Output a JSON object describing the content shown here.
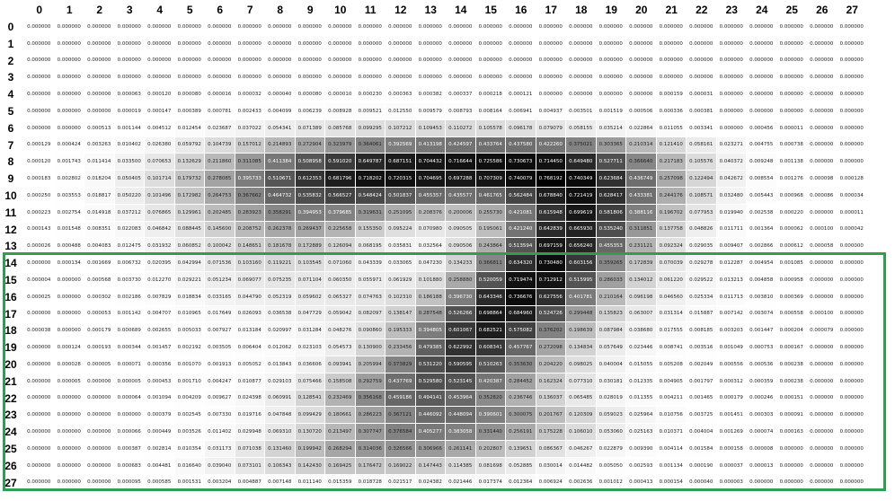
{
  "columns": [
    "0",
    "1",
    "2",
    "3",
    "4",
    "5",
    "6",
    "7",
    "8",
    "9",
    "10",
    "11",
    "12",
    "13",
    "14",
    "15",
    "16",
    "17",
    "18",
    "19",
    "20",
    "21",
    "22",
    "23",
    "24",
    "25",
    "26",
    "27"
  ],
  "rows": [
    "0",
    "1",
    "2",
    "3",
    "4",
    "5",
    "6",
    "7",
    "8",
    "9",
    "10",
    "11",
    "12",
    "13",
    "14",
    "15",
    "16",
    "17",
    "18",
    "19",
    "20",
    "21",
    "22",
    "23",
    "24",
    "25",
    "26",
    "27"
  ],
  "highlight_color": "#2f9e4e",
  "matrix": [
    [
      0,
      0,
      0,
      0,
      0,
      0,
      0,
      0,
      0,
      0,
      0,
      0,
      0,
      0,
      0,
      0,
      0,
      0,
      0,
      0,
      0,
      0,
      0,
      0,
      0,
      0,
      0,
      0
    ],
    [
      0,
      0,
      0,
      0,
      0,
      0,
      0,
      0,
      0,
      0,
      0,
      0,
      0,
      0,
      0,
      0,
      0,
      0,
      0,
      0,
      0,
      0,
      0,
      0,
      0,
      0,
      0,
      0
    ],
    [
      0,
      0,
      0,
      0,
      0,
      0,
      0,
      0,
      0,
      0,
      0,
      0,
      0,
      0,
      0,
      0,
      0,
      0,
      0,
      0,
      0,
      0,
      0,
      0,
      0,
      0,
      0,
      0
    ],
    [
      0,
      0,
      0,
      0,
      0,
      0,
      0,
      0,
      0,
      0,
      0,
      0,
      0,
      0,
      0,
      0,
      0,
      0,
      0,
      0,
      0,
      0,
      0,
      0,
      0,
      0,
      0,
      0
    ],
    [
      0,
      0,
      0,
      6.3e-05,
      0.00012,
      8e-05,
      1.6e-05,
      3.2e-05,
      4e-05,
      8e-05,
      1e-05,
      0.00023,
      0.000363,
      0.000382,
      0.000337,
      0.000218,
      0.000121,
      0,
      0,
      0,
      0,
      0.000159,
      3.1e-05,
      0,
      0,
      0,
      0,
      0
    ],
    [
      0,
      0,
      0,
      1.9e-05,
      0.000147,
      0.000389,
      0.000781,
      0.002433,
      0.004099,
      0.006239,
      0.008928,
      0.009521,
      0.01255,
      0.009579,
      0.008793,
      0.008164,
      0.006941,
      0.004937,
      0.003501,
      0.001519,
      0.000506,
      0.000336,
      0.000381,
      0,
      0,
      0,
      0,
      0
    ],
    [
      0,
      0,
      0.000513,
      0.001144,
      0.004512,
      0.012454,
      0.023687,
      0.037022,
      0.054341,
      0.071389,
      0.085768,
      0.099295,
      0.107212,
      0.109453,
      0.110272,
      0.105578,
      0.096178,
      0.079079,
      0.058155,
      0.035214,
      0.022864,
      0.011055,
      0.003341,
      0,
      0.000456,
      1.1e-05,
      0,
      0
    ],
    [
      0.000129,
      0.000424,
      0.003263,
      0.010402,
      0.02638,
      0.059792,
      0.104739,
      0.157012,
      0.214893,
      0.272904,
      0.323979,
      0.364061,
      0.392569,
      0.413198,
      0.424597,
      0.433764,
      0.43758,
      0.42226,
      0.375021,
      0.303365,
      0.210314,
      0.12141,
      0.058161,
      0.023271,
      0.004755,
      0.000738,
      0,
      0
    ],
    [
      0.00012,
      0.001743,
      0.011414,
      0.0335,
      0.070653,
      0.132629,
      0.21186,
      0.311085,
      0.411384,
      0.508958,
      0.59102,
      0.649787,
      0.687151,
      0.704432,
      0.716644,
      0.725586,
      0.730673,
      0.71445,
      0.64948,
      0.527711,
      0.36664,
      0.217183,
      0.105576,
      0.040372,
      0.009248,
      0.001138,
      0,
      0
    ],
    [
      0.000183,
      0.002802,
      0.018204,
      0.050405,
      0.101714,
      0.179732,
      0.278085,
      0.395733,
      0.510671,
      0.612353,
      0.681796,
      0.718202,
      0.720315,
      0.704695,
      0.697288,
      0.707309,
      0.740079,
      0.768192,
      0.740349,
      0.623684,
      0.436749,
      0.257098,
      0.122494,
      0.042672,
      0.008554,
      0.001276,
      9.8e-05,
      0.000128
    ],
    [
      0.00025,
      0.003553,
      0.018817,
      0.05022,
      0.101496,
      0.172982,
      0.264753,
      0.367662,
      0.464732,
      0.535832,
      0.566527,
      0.548424,
      0.501837,
      0.455357,
      0.435577,
      0.461765,
      0.562484,
      0.67884,
      0.721419,
      0.628417,
      0.433381,
      0.244176,
      0.108571,
      0.03248,
      0.005443,
      0.000968,
      8.6e-05,
      3.4e-05
    ],
    [
      0.000223,
      0.002754,
      0.014918,
      0.037212,
      0.076865,
      0.129961,
      0.202485,
      0.283923,
      0.358291,
      0.394953,
      0.379685,
      0.319631,
      0.251095,
      0.208376,
      0.200006,
      0.25573,
      0.421081,
      0.615948,
      0.699619,
      0.581806,
      0.388116,
      0.196702,
      0.077953,
      0.01994,
      0.002538,
      0.00022,
      0,
      1.1e-05
    ],
    [
      0.000143,
      0.001548,
      0.008351,
      0.022083,
      0.046842,
      0.088445,
      0.1456,
      0.208752,
      0.262378,
      0.269437,
      0.225658,
      0.15535,
      0.095224,
      0.07098,
      0.090505,
      0.195061,
      0.42124,
      0.642839,
      0.66593,
      0.53524,
      0.311851,
      0.137758,
      0.048826,
      0.011711,
      0.001364,
      6.2e-05,
      0.0001,
      4.2e-05
    ],
    [
      2.6e-05,
      0.000488,
      0.004083,
      0.012475,
      0.031932,
      0.060852,
      0.100042,
      0.148651,
      0.181678,
      0.172889,
      0.126094,
      0.068195,
      0.035831,
      0.032564,
      0.090506,
      0.243864,
      0.513594,
      0.697159,
      0.65624,
      0.455353,
      0.231121,
      0.092324,
      0.029035,
      0.009407,
      0.002866,
      0.000612,
      5.8e-05,
      0
    ],
    [
      0,
      0.000134,
      0.001669,
      0.006732,
      0.020395,
      0.042994,
      0.071536,
      0.10316,
      0.119221,
      0.103545,
      0.07106,
      0.043339,
      0.033065,
      0.04723,
      0.134233,
      0.366811,
      0.63432,
      0.73048,
      0.603156,
      0.359265,
      0.172839,
      0.070039,
      0.029278,
      0.012287,
      0.004954,
      0.001085,
      0,
      0
    ],
    [
      4e-06,
      0,
      0.000568,
      0.00373,
      0.01227,
      0.029221,
      0.051234,
      0.069077,
      0.075235,
      0.071104,
      0.06035,
      0.055971,
      0.061929,
      0.10188,
      0.25888,
      0.520059,
      0.719474,
      0.712912,
      0.515995,
      0.286033,
      0.134012,
      0.06122,
      0.029522,
      0.013213,
      0.004858,
      0.000958,
      0,
      0
    ],
    [
      2.5e-05,
      0,
      0.000302,
      0.002186,
      0.007829,
      0.018834,
      0.033165,
      0.04479,
      0.052319,
      0.059602,
      0.065327,
      0.074763,
      0.10231,
      0.186188,
      0.39673,
      0.643346,
      0.736676,
      0.627556,
      0.401781,
      0.210164,
      0.096198,
      0.04656,
      0.025334,
      0.011713,
      0.00381,
      0.000369,
      0,
      0
    ],
    [
      0,
      0,
      5.3e-05,
      0.001142,
      0.004707,
      0.010965,
      0.017649,
      0.026093,
      0.036538,
      0.047729,
      0.059042,
      0.082097,
      0.138147,
      0.287548,
      0.526266,
      0.698864,
      0.68496,
      0.524726,
      0.299448,
      0.135823,
      0.063007,
      0.031314,
      0.015887,
      0.007142,
      0.003074,
      0.000558,
      0.0001,
      0
    ],
    [
      3.8e-05,
      0,
      0.000179,
      0.000689,
      0.002655,
      0.005033,
      0.007927,
      0.013184,
      0.020997,
      0.031284,
      0.048276,
      0.09086,
      0.195333,
      0.394805,
      0.601067,
      0.682521,
      0.575082,
      0.376202,
      0.198639,
      0.087984,
      0.03868,
      0.017555,
      0.008185,
      0.003203,
      0.001447,
      0.000204,
      7.9e-05,
      0
    ],
    [
      0,
      0.000124,
      0.000193,
      0.000344,
      0.001457,
      0.002192,
      0.003505,
      0.006404,
      0.012062,
      0.023103,
      0.054573,
      0.1309,
      0.233456,
      0.479385,
      0.622992,
      0.608341,
      0.457767,
      0.272098,
      0.134834,
      0.057649,
      0.023446,
      0.008741,
      0.003516,
      0.001049,
      0.000753,
      0.000167,
      0,
      0
    ],
    [
      0,
      2.8e-05,
      5e-06,
      7.1e-05,
      0.000356,
      0.00107,
      0.001913,
      0.005052,
      0.013843,
      0.036606,
      0.093941,
      0.205994,
      0.373829,
      0.53122,
      0.590595,
      0.510263,
      0.35363,
      0.20422,
      0.098025,
      0.040004,
      0.015055,
      0.005208,
      0.002049,
      0.000556,
      0.000536,
      0.000238,
      0,
      0
    ],
    [
      0,
      5e-06,
      0,
      5e-06,
      0.000453,
      0.00171,
      0.004247,
      0.010877,
      0.029103,
      0.075466,
      0.158508,
      0.292759,
      0.437769,
      0.52958,
      0.523145,
      0.420387,
      0.284452,
      0.162324,
      0.07731,
      0.030181,
      0.012335,
      0.004905,
      0.001797,
      0.000312,
      0.000359,
      0.000238,
      0,
      0
    ],
    [
      0,
      0,
      0,
      6.4e-05,
      0.001094,
      0.004209,
      0.009627,
      0.024398,
      0.060991,
      0.128541,
      0.232469,
      0.356168,
      0.459186,
      0.494141,
      0.453964,
      0.35282,
      0.236746,
      0.136037,
      0.065485,
      0.028019,
      0.011355,
      0.004211,
      0.001465,
      0.000179,
      0.000246,
      0.000151,
      0,
      0
    ],
    [
      0,
      0,
      0,
      0,
      0.000379,
      0.002545,
      0.00733,
      0.019716,
      0.047848,
      0.099429,
      0.180661,
      0.286223,
      0.367121,
      0.446092,
      0.448094,
      0.390601,
      0.300075,
      0.201767,
      0.120309,
      0.059023,
      0.025964,
      0.010756,
      0.003725,
      0.001451,
      0.000303,
      9.1e-05,
      0,
      0
    ],
    [
      0,
      0,
      0,
      6.6e-05,
      0.000449,
      0.003526,
      0.011402,
      0.029948,
      0.06931,
      0.13072,
      0.213497,
      0.307747,
      0.376584,
      0.405277,
      0.383058,
      0.33144,
      0.256191,
      0.175228,
      0.10601,
      0.05306,
      0.025163,
      0.010371,
      0.004004,
      0.001269,
      7.4e-05,
      0.000163,
      0,
      0
    ],
    [
      0,
      0,
      0,
      0.000387,
      0.002814,
      0.010354,
      0.031173,
      0.071038,
      0.13146,
      0.199942,
      0.268294,
      0.314036,
      0.326566,
      0.306966,
      0.261141,
      0.202807,
      0.139651,
      0.086367,
      0.046267,
      0.022879,
      0.00939,
      0.004114,
      0.001584,
      0.000158,
      8e-06,
      0,
      0,
      0
    ],
    [
      0,
      0,
      0,
      0.000683,
      0.004481,
      0.01664,
      0.03904,
      0.073101,
      0.106343,
      0.14243,
      0.169425,
      0.176472,
      0.169022,
      0.147443,
      0.114385,
      0.081698,
      0.052885,
      0.030014,
      0.014482,
      0.00505,
      0.002593,
      0.001134,
      0.00019,
      3.7e-05,
      1.3e-05,
      0,
      0,
      0
    ],
    [
      0,
      0,
      0,
      9.5e-05,
      0.000585,
      0.001531,
      0.003204,
      0.004887,
      0.007148,
      0.01114,
      0.015359,
      0.018728,
      0.021517,
      0.024382,
      0.021446,
      0.017374,
      0.012364,
      0.006924,
      0.002636,
      0.001012,
      0.000413,
      0.000154,
      4e-05,
      3e-06,
      0,
      0,
      0,
      0
    ]
  ]
}
